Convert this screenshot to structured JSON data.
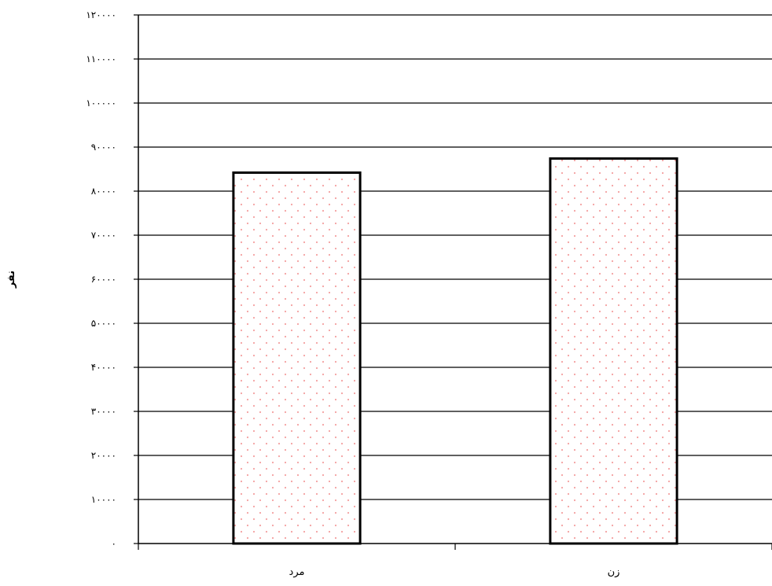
{
  "chart_data": {
    "type": "bar",
    "categories": [
      "مرد",
      "زن"
    ],
    "values": [
      84200,
      87400
    ],
    "ylabel": "نفر",
    "xlabel": "",
    "title": "",
    "ylim": [
      0,
      120000
    ],
    "y_ticks": [
      {
        "value": 0,
        "label": "۰"
      },
      {
        "value": 10000,
        "label": "۱۰۰۰۰"
      },
      {
        "value": 20000,
        "label": "۲۰۰۰۰"
      },
      {
        "value": 30000,
        "label": "۳۰۰۰۰"
      },
      {
        "value": 40000,
        "label": "۴۰۰۰۰"
      },
      {
        "value": 50000,
        "label": "۵۰۰۰۰"
      },
      {
        "value": 60000,
        "label": "۶۰۰۰۰"
      },
      {
        "value": 70000,
        "label": "۷۰۰۰۰"
      },
      {
        "value": 80000,
        "label": "۸۰۰۰۰"
      },
      {
        "value": 90000,
        "label": "۹۰۰۰۰"
      },
      {
        "value": 100000,
        "label": "۱۰۰۰۰۰"
      },
      {
        "value": 110000,
        "label": "۱۱۰۰۰۰"
      },
      {
        "value": 120000,
        "label": "۱۲۰۰۰۰"
      }
    ],
    "grid": true,
    "legend": "none",
    "bar_pattern": "dotted",
    "bar_dot_color": "#f4a0a0",
    "bar_stroke_color": "#000000"
  }
}
